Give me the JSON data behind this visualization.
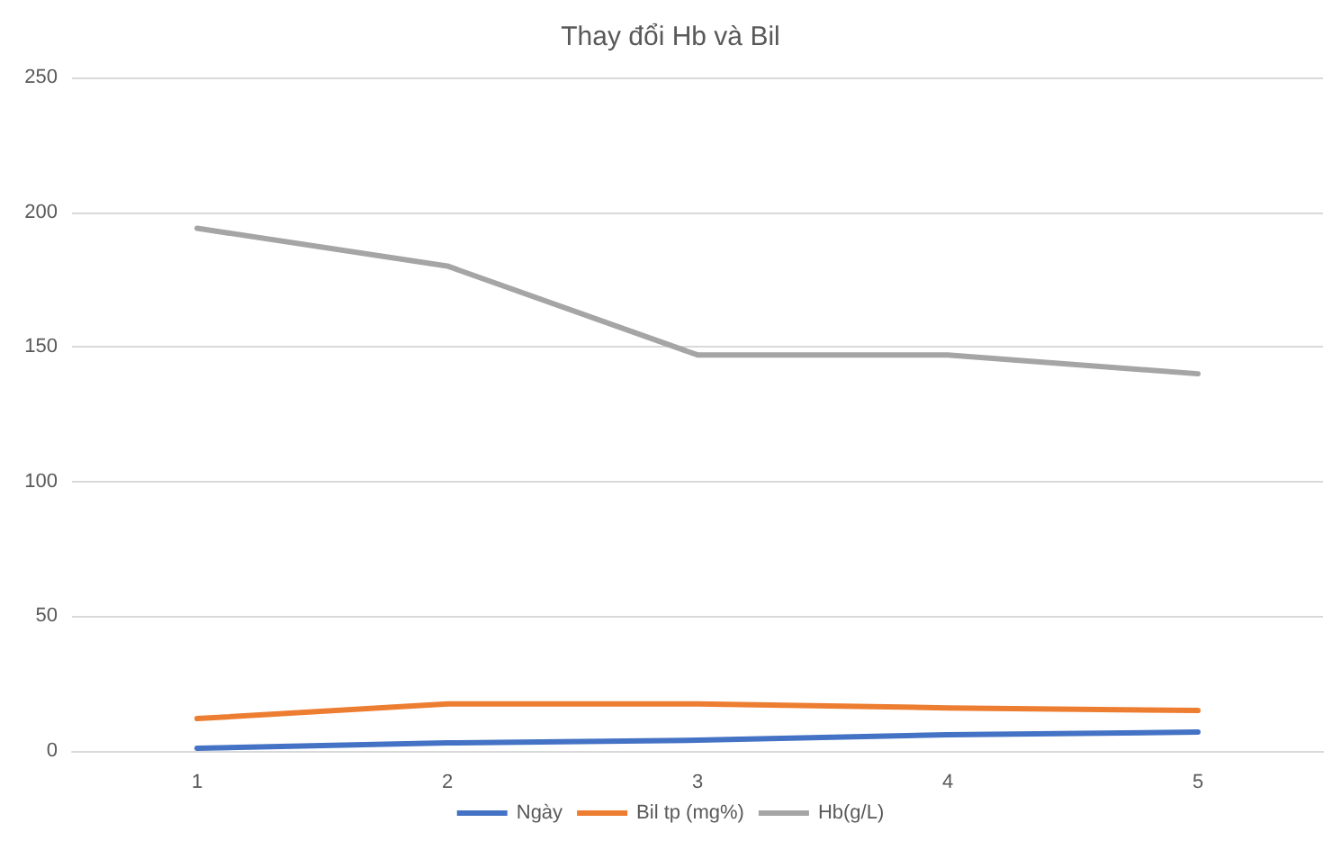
{
  "chart_data": {
    "type": "line",
    "title": "Thay đổi Hb và Bil",
    "categories": [
      "1",
      "2",
      "3",
      "4",
      "5"
    ],
    "series": [
      {
        "name": "Ngày",
        "color": "#4472c4",
        "values": [
          1,
          3,
          4,
          6,
          7
        ]
      },
      {
        "name": "Bil tp (mg%)",
        "color": "#ed7d31",
        "values": [
          12,
          17.5,
          17.5,
          16,
          15
        ]
      },
      {
        "name": "Hb(g/L)",
        "color": "#a5a5a5",
        "values": [
          194,
          180,
          147,
          147,
          140
        ]
      }
    ],
    "ylim": [
      0,
      250
    ],
    "yticks": [
      0,
      50,
      100,
      150,
      200,
      250
    ],
    "grid": "y",
    "legend": "bottom",
    "marker": "none",
    "line_style": "solid"
  }
}
